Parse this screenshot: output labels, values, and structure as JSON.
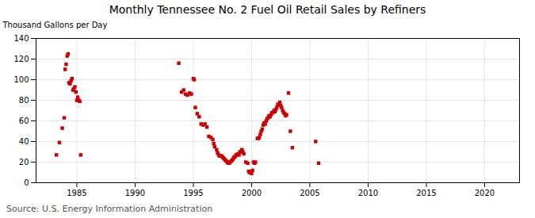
{
  "chart_data": {
    "type": "scatter",
    "title": "Monthly Tennessee No. 2 Fuel Oil Retail Sales by Refiners",
    "ylabel": "Thousand Gallons per Day",
    "source": "Source: U.S. Energy Information Administration",
    "color": "#cc0000",
    "marker": "square",
    "grid": true,
    "xlim": [
      1981.5,
      2023
    ],
    "ylim": [
      0,
      140
    ],
    "xticks": [
      1985,
      1990,
      1995,
      2000,
      2005,
      2010,
      2015,
      2020
    ],
    "yticks": [
      0,
      20,
      40,
      60,
      80,
      100,
      120,
      140
    ],
    "x": [
      1983.25,
      1983.5,
      1983.75,
      1983.92,
      1984.0,
      1984.08,
      1984.17,
      1984.25,
      1984.33,
      1984.42,
      1984.5,
      1984.58,
      1984.67,
      1984.75,
      1984.83,
      1984.92,
      1985.0,
      1985.08,
      1985.17,
      1985.25,
      1985.33,
      1993.75,
      1994.0,
      1994.17,
      1994.33,
      1994.5,
      1994.67,
      1994.83,
      1995.0,
      1995.08,
      1995.17,
      1995.33,
      1995.5,
      1995.67,
      1995.83,
      1996.0,
      1996.17,
      1996.33,
      1996.5,
      1996.67,
      1996.75,
      1996.83,
      1997.0,
      1997.08,
      1997.17,
      1997.25,
      1997.33,
      1997.42,
      1997.5,
      1997.58,
      1997.67,
      1997.75,
      1997.83,
      1997.92,
      1998.0,
      1998.08,
      1998.17,
      1998.25,
      1998.33,
      1998.42,
      1998.5,
      1998.58,
      1998.67,
      1998.75,
      1998.83,
      1998.92,
      1999.0,
      1999.08,
      1999.17,
      1999.25,
      1999.33,
      1999.5,
      1999.67,
      1999.75,
      1999.83,
      1999.92,
      2000.0,
      2000.08,
      2000.17,
      2000.25,
      2000.33,
      2000.5,
      2000.58,
      2000.67,
      2000.75,
      2000.83,
      2000.92,
      2001.0,
      2001.08,
      2001.17,
      2001.25,
      2001.33,
      2001.42,
      2001.5,
      2001.58,
      2001.67,
      2001.75,
      2001.83,
      2001.92,
      2002.0,
      2002.08,
      2002.17,
      2002.25,
      2002.33,
      2002.42,
      2002.5,
      2002.58,
      2002.67,
      2002.75,
      2002.83,
      2002.92,
      2003.0,
      2003.17,
      2003.33,
      2003.5,
      2005.5,
      2005.75
    ],
    "values": [
      27,
      39,
      53,
      63,
      110,
      115,
      123,
      125,
      97,
      96,
      99,
      101,
      90,
      91,
      93,
      88,
      80,
      83,
      80,
      79,
      27,
      116,
      88,
      90,
      86,
      85,
      87,
      86,
      101,
      100,
      73,
      67,
      64,
      57,
      56,
      57,
      54,
      45,
      44,
      42,
      38,
      35,
      32,
      29,
      27,
      26,
      26,
      26,
      25,
      24,
      23,
      22,
      21,
      20,
      19,
      19,
      20,
      21,
      22,
      23,
      25,
      25,
      27,
      27,
      28,
      27,
      30,
      30,
      32,
      30,
      28,
      20,
      19,
      11,
      10,
      10,
      9,
      12,
      20,
      19,
      20,
      43,
      43,
      44,
      47,
      50,
      52,
      56,
      58,
      57,
      60,
      62,
      63,
      65,
      64,
      66,
      68,
      68,
      70,
      69,
      71,
      73,
      76,
      76,
      78,
      75,
      73,
      70,
      68,
      67,
      65,
      66,
      87,
      50,
      34,
      40,
      19
    ]
  }
}
